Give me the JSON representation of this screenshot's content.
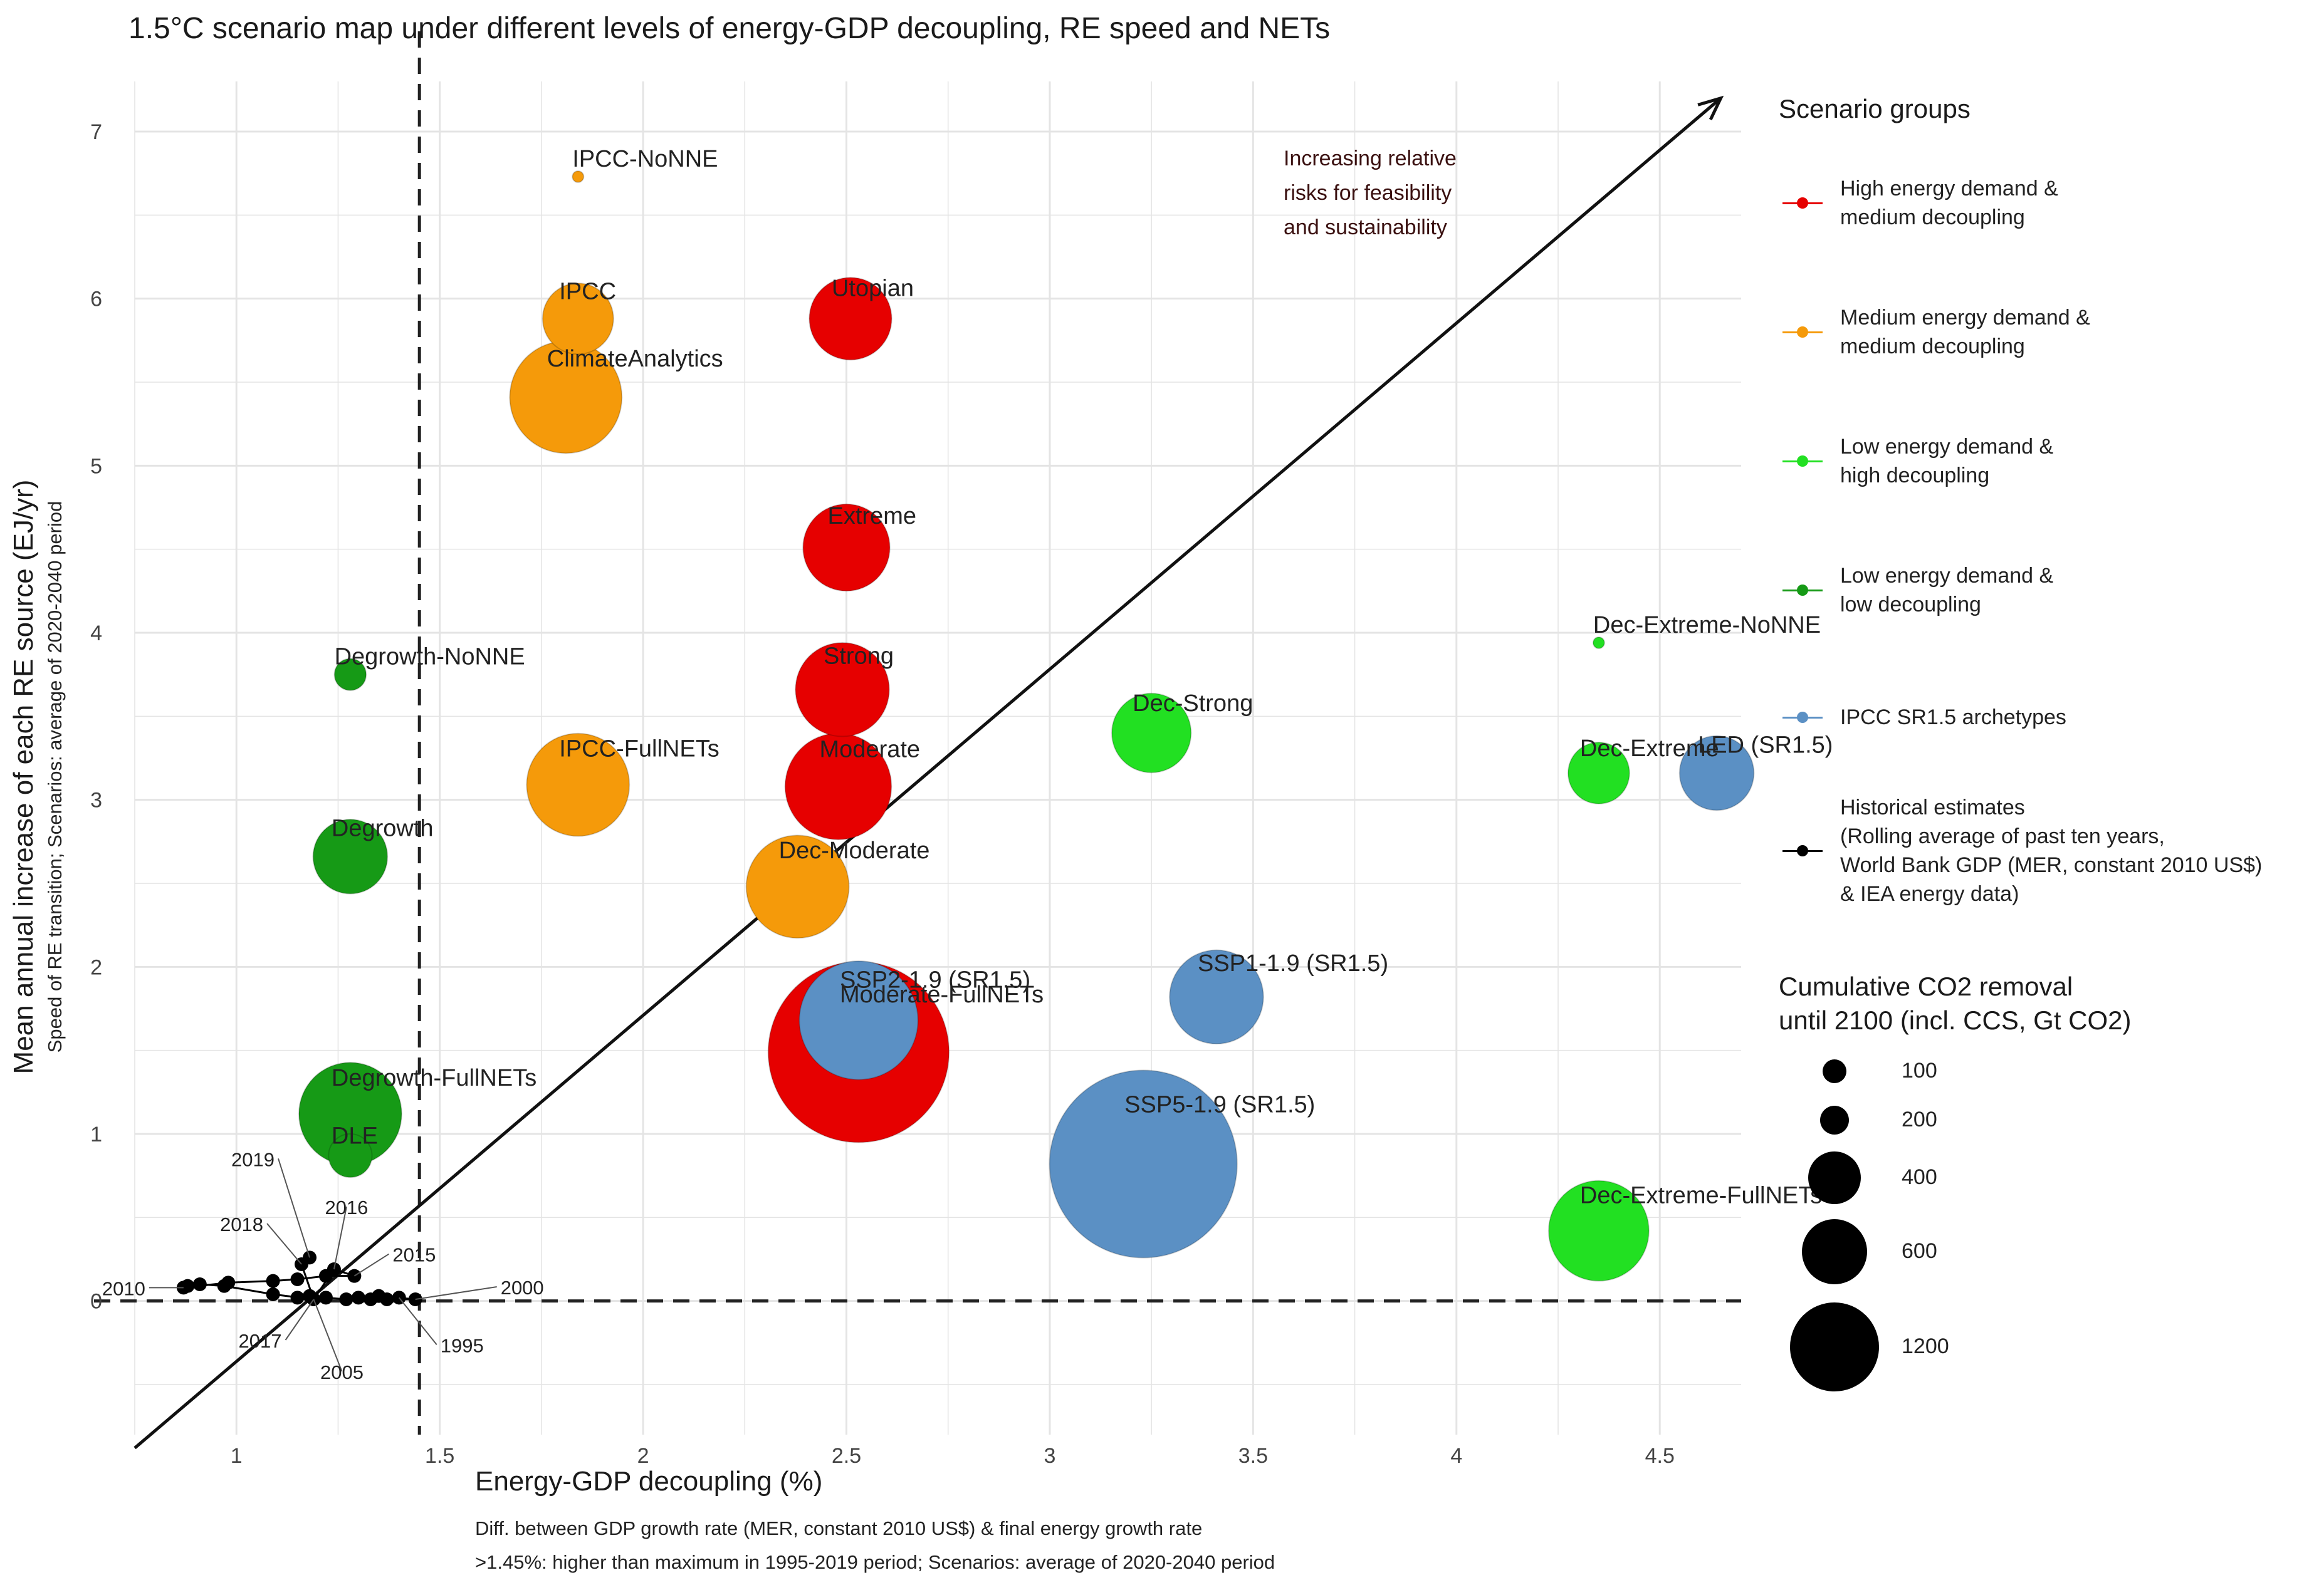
{
  "title": "1.5°C scenario map under different levels of energy-GDP decoupling, RE speed and NETs",
  "chart_data": {
    "type": "scatter",
    "xlabel": "Energy-GDP decoupling (%)",
    "xlabel_sub": [
      "Diff. between GDP growth rate (MER, constant 2010 US$) & final energy growth rate",
      ">1.45%: higher than maximum in 1995-2019 period; Scenarios: average of 2020-2040 period"
    ],
    "ylabel": "Mean annual increase of each RE source (EJ/yr)",
    "ylabel_sub": "Speed of RE transition; Scenarios: average of 2020-2040 period",
    "xlim": [
      0.75,
      4.7
    ],
    "ylim": [
      -0.8,
      7.3
    ],
    "x_ticks": [
      1,
      1.5,
      2,
      2.5,
      3,
      3.5,
      4,
      4.5
    ],
    "x_tick_labels": [
      "1",
      "1.5",
      "2",
      "2.5",
      "3",
      "3.5",
      "4",
      "4.5"
    ],
    "y_ticks": [
      0,
      1,
      2,
      3,
      4,
      5,
      6,
      7
    ],
    "y_tick_labels": [
      "0",
      "1",
      "2",
      "3",
      "4",
      "5",
      "6",
      "7"
    ],
    "grid": true,
    "reference_lines": {
      "x": 1.45,
      "y": 0,
      "style": "dashed"
    },
    "arrow": {
      "from": [
        0.75,
        -0.88
      ],
      "to": [
        4.65,
        7.2
      ],
      "label": "Increasing relative\nrisks for feasibility\nand sustainability"
    },
    "legend_title": "Scenario groups",
    "legend_position": "right",
    "groups": [
      {
        "name": "High energy demand &\nmedium decoupling",
        "color": "#e60000"
      },
      {
        "name": "Medium energy demand &\nmedium decoupling",
        "color": "#f59a0a"
      },
      {
        "name": "Low energy demand &\nhigh decoupling",
        "color": "#22e022"
      },
      {
        "name": "Low energy demand &\nlow decoupling",
        "color": "#169a16"
      },
      {
        "name": "IPCC SR1.5 archetypes",
        "color": "#5b90c4"
      },
      {
        "name": "Historical estimates\n(Rolling average of past ten years,\nWorld Bank GDP (MER, constant 2010 US$)\n& IEA energy data)",
        "color": "#000000"
      }
    ],
    "size_legend_title": "Cumulative CO2 removal\nuntil 2100 (incl. CCS, Gt CO2)",
    "size_legend": [
      100,
      200,
      400,
      600,
      1200
    ],
    "points": [
      {
        "label": "IPCC-NoNNE",
        "group": 1,
        "x": 1.84,
        "y": 6.73,
        "size": 5
      },
      {
        "label": "IPCC",
        "group": 1,
        "x": 1.84,
        "y": 5.88,
        "size": 200
      },
      {
        "label": "ClimateAnalytics",
        "group": 1,
        "x": 1.81,
        "y": 5.41,
        "size": 500
      },
      {
        "label": "Utopian",
        "group": 0,
        "x": 2.51,
        "y": 5.88,
        "size": 270
      },
      {
        "label": "Extreme",
        "group": 0,
        "x": 2.5,
        "y": 4.51,
        "size": 300
      },
      {
        "label": "Strong",
        "group": 0,
        "x": 2.49,
        "y": 3.66,
        "size": 350
      },
      {
        "label": "Moderate",
        "group": 0,
        "x": 2.48,
        "y": 3.08,
        "size": 450
      },
      {
        "label": "Moderate-FullNETs",
        "group": 0,
        "x": 2.53,
        "y": 1.49,
        "size": 1300
      },
      {
        "label": "IPCC-FullNETs",
        "group": 1,
        "x": 1.84,
        "y": 3.09,
        "size": 420
      },
      {
        "label": "Dec-Moderate",
        "group": 1,
        "x": 2.38,
        "y": 2.48,
        "size": 420
      },
      {
        "label": "Degrowth-NoNNE",
        "group": 3,
        "x": 1.28,
        "y": 3.75,
        "size": 40
      },
      {
        "label": "Degrowth",
        "group": 3,
        "x": 1.28,
        "y": 2.66,
        "size": 220
      },
      {
        "label": "Degrowth-FullNETs",
        "group": 3,
        "x": 1.28,
        "y": 1.12,
        "size": 420
      },
      {
        "label": "DLE",
        "group": 3,
        "x": 1.28,
        "y": 0.87,
        "size": 75
      },
      {
        "label": "Dec-Strong",
        "group": 2,
        "x": 3.25,
        "y": 3.4,
        "size": 250
      },
      {
        "label": "Dec-Extreme-NoNNE",
        "group": 2,
        "x": 4.35,
        "y": 3.94,
        "size": 5
      },
      {
        "label": "Dec-Extreme",
        "group": 2,
        "x": 4.35,
        "y": 3.16,
        "size": 150
      },
      {
        "label": "Dec-Extreme-FullNETs",
        "group": 2,
        "x": 4.35,
        "y": 0.42,
        "size": 400
      },
      {
        "label": "LED (SR1.5)",
        "group": 4,
        "x": 4.64,
        "y": 3.16,
        "size": 220
      },
      {
        "label": "SSP2-1.9 (SR1.5)",
        "group": 4,
        "x": 2.53,
        "y": 1.68,
        "size": 560
      },
      {
        "label": "SSP1-1.9 (SR1.5)",
        "group": 4,
        "x": 3.41,
        "y": 1.82,
        "size": 350
      },
      {
        "label": "SSP5-1.9 (SR1.5)",
        "group": 4,
        "x": 3.23,
        "y": 0.82,
        "size": 1400
      }
    ],
    "historical": {
      "labels": [
        "1995",
        "2000",
        "2005",
        "2010",
        "2015",
        "2016",
        "2017",
        "2018",
        "2019"
      ],
      "points": [
        {
          "year": "1995",
          "x": 1.4,
          "y": 0.02
        },
        {
          "year": "1996",
          "x": 1.37,
          "y": 0.01
        },
        {
          "year": "1997",
          "x": 1.33,
          "y": 0.01
        },
        {
          "year": "1998",
          "x": 1.3,
          "y": 0.02
        },
        {
          "year": "1999",
          "x": 1.35,
          "y": 0.03
        },
        {
          "year": "2000",
          "x": 1.44,
          "y": 0.01
        },
        {
          "year": "2001",
          "x": 1.27,
          "y": 0.01
        },
        {
          "year": "2002",
          "x": 1.22,
          "y": 0.02
        },
        {
          "year": "2003",
          "x": 1.18,
          "y": 0.03
        },
        {
          "year": "2004",
          "x": 1.15,
          "y": 0.02
        },
        {
          "year": "2005",
          "x": 1.19,
          "y": 0.01
        },
        {
          "year": "2006",
          "x": 1.09,
          "y": 0.04
        },
        {
          "year": "2007",
          "x": 0.97,
          "y": 0.09
        },
        {
          "year": "2008",
          "x": 0.91,
          "y": 0.1
        },
        {
          "year": "2009",
          "x": 0.88,
          "y": 0.09
        },
        {
          "year": "2010",
          "x": 0.87,
          "y": 0.08
        },
        {
          "year": "2011",
          "x": 0.98,
          "y": 0.11
        },
        {
          "year": "2012",
          "x": 1.09,
          "y": 0.12
        },
        {
          "year": "2013",
          "x": 1.15,
          "y": 0.13
        },
        {
          "year": "2014",
          "x": 1.22,
          "y": 0.15
        },
        {
          "year": "2015",
          "x": 1.29,
          "y": 0.15
        },
        {
          "year": "2016",
          "x": 1.24,
          "y": 0.19
        },
        {
          "year": "2017",
          "x": 1.19,
          "y": 0.01
        },
        {
          "year": "2018",
          "x": 1.16,
          "y": 0.22
        },
        {
          "year": "2019",
          "x": 1.18,
          "y": 0.26
        }
      ]
    }
  }
}
